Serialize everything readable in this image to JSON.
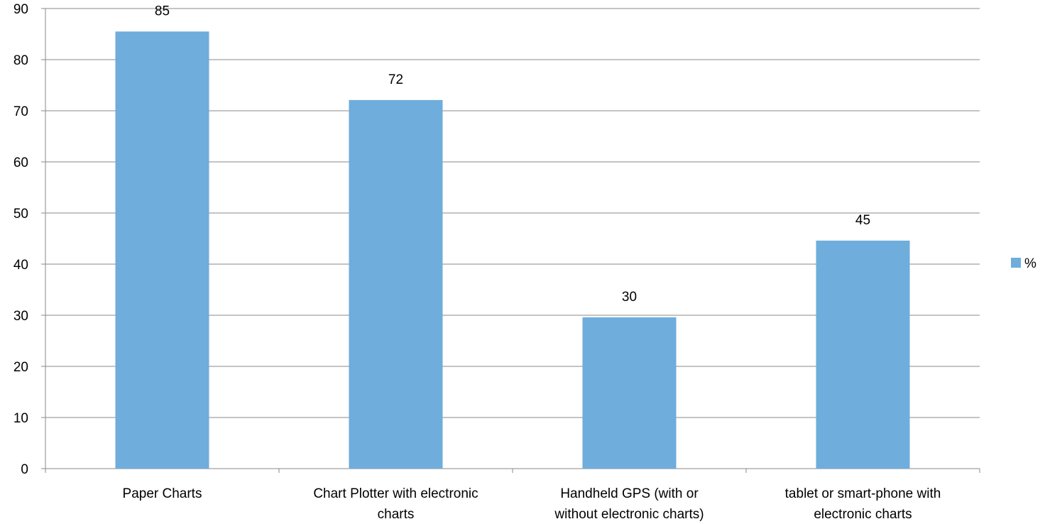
{
  "chart_data": {
    "type": "bar",
    "categories": [
      "Paper Charts",
      "Chart Plotter with electronic charts",
      "Handheld GPS (with or without electronic charts)",
      "tablet or smart-phone with electronic charts"
    ],
    "category_label_lines": [
      [
        "Paper Charts"
      ],
      [
        "Chart Plotter with electronic",
        "charts"
      ],
      [
        "Handheld GPS (with or",
        "without electronic charts)"
      ],
      [
        "tablet or smart-phone with",
        "electronic charts"
      ]
    ],
    "series": [
      {
        "name": "%",
        "values": [
          85.5,
          72.1,
          29.6,
          44.6
        ],
        "data_labels": [
          "85",
          "72",
          "30",
          "45"
        ]
      }
    ],
    "ylim": [
      0,
      90
    ],
    "yticks": [
      0,
      10,
      20,
      30,
      40,
      50,
      60,
      70,
      80,
      90
    ],
    "grid": true,
    "legend_position": "right",
    "colors": {
      "bar": "#6eaddc",
      "grid": "#888888",
      "axis": "#888888"
    }
  }
}
